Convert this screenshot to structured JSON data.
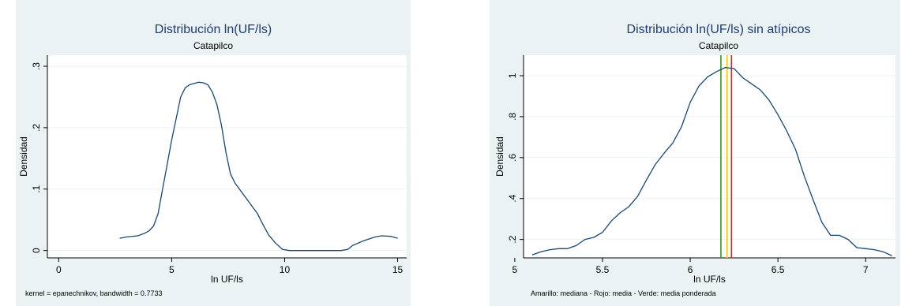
{
  "colors": {
    "frame_bg": "#eaf2f3",
    "plot_bg": "#ffffff",
    "title": "#1f3b6f",
    "curve": "#1a476f",
    "grid": "#eaf2f3",
    "median": "#f2c300",
    "mean": "#d62728",
    "weighted_mean": "#2e8b22"
  },
  "chart_data": [
    {
      "type": "line",
      "title": "Distribución ln(UF/ls)",
      "subtitle": "Catapilco",
      "xlabel": "ln UF/ls",
      "ylabel": "Densidad",
      "xlim": [
        -0.5,
        15.4
      ],
      "ylim": [
        -0.012,
        0.318
      ],
      "xticks": [
        0,
        5,
        10,
        15
      ],
      "xtick_labels": [
        "0",
        "5",
        "10",
        "15"
      ],
      "yticks": [
        0,
        0.1,
        0.2,
        0.3
      ],
      "ytick_labels": [
        "0",
        ".1",
        ".2",
        ".3"
      ],
      "grid": true,
      "note": "kernel = epanechnikov, bandwidth = 0.7733",
      "series": [
        {
          "x": [
            2.7,
            3.0,
            3.5,
            3.8,
            4.0,
            4.2,
            4.4,
            4.6,
            4.8,
            5.0,
            5.2,
            5.4,
            5.6,
            5.8,
            6.0,
            6.2,
            6.4,
            6.6,
            6.8,
            7.0,
            7.2,
            7.4,
            7.6,
            7.8,
            8.0,
            8.2,
            8.5,
            8.8,
            9.0,
            9.3,
            9.6,
            9.9,
            10.2,
            10.6,
            11.0,
            11.5,
            12.0,
            12.5,
            12.8,
            13.0,
            13.5,
            14.0,
            14.3,
            14.7,
            15.0
          ],
          "y": [
            0.02,
            0.022,
            0.024,
            0.028,
            0.032,
            0.04,
            0.06,
            0.1,
            0.14,
            0.18,
            0.215,
            0.25,
            0.265,
            0.27,
            0.272,
            0.274,
            0.273,
            0.27,
            0.258,
            0.238,
            0.205,
            0.16,
            0.125,
            0.11,
            0.1,
            0.09,
            0.075,
            0.06,
            0.045,
            0.025,
            0.012,
            0.002,
            0.0,
            0.0,
            0.0,
            0.0,
            0.0,
            0.0,
            0.002,
            0.008,
            0.016,
            0.022,
            0.024,
            0.023,
            0.02
          ]
        }
      ]
    },
    {
      "type": "line",
      "title": "Distribución ln(UF/ls) sin atípicos",
      "subtitle": "Catapilco",
      "xlabel": "ln UF/ls",
      "ylabel": "Densidad",
      "xlim": [
        5.05,
        7.17
      ],
      "ylim": [
        0.11,
        1.1
      ],
      "xticks": [
        5,
        5.5,
        6,
        6.5,
        7
      ],
      "xtick_labels": [
        "5",
        "5.5",
        "6",
        "6.5",
        "7"
      ],
      "yticks": [
        0.2,
        0.4,
        0.6,
        0.8,
        1.0
      ],
      "ytick_labels": [
        ".2",
        ".4",
        ".6",
        ".8",
        "1"
      ],
      "grid": true,
      "note": "Amarillo: mediana - Rojo: media - Verde: media ponderada",
      "reference_lines": [
        {
          "x": 6.175,
          "color_key": "weighted_mean"
        },
        {
          "x": 6.21,
          "color_key": "median"
        },
        {
          "x": 6.235,
          "color_key": "mean"
        }
      ],
      "series": [
        {
          "x": [
            5.1,
            5.15,
            5.2,
            5.25,
            5.3,
            5.35,
            5.4,
            5.45,
            5.5,
            5.55,
            5.6,
            5.65,
            5.7,
            5.75,
            5.8,
            5.85,
            5.9,
            5.95,
            6.0,
            6.05,
            6.1,
            6.15,
            6.2,
            6.25,
            6.3,
            6.35,
            6.4,
            6.45,
            6.5,
            6.55,
            6.6,
            6.65,
            6.7,
            6.75,
            6.8,
            6.85,
            6.9,
            6.95,
            7.0,
            7.05,
            7.1,
            7.15
          ],
          "y": [
            0.125,
            0.14,
            0.15,
            0.155,
            0.155,
            0.17,
            0.2,
            0.21,
            0.235,
            0.29,
            0.33,
            0.36,
            0.41,
            0.49,
            0.565,
            0.62,
            0.67,
            0.75,
            0.87,
            0.95,
            0.995,
            1.02,
            1.04,
            1.035,
            0.99,
            0.96,
            0.93,
            0.88,
            0.81,
            0.73,
            0.64,
            0.51,
            0.395,
            0.285,
            0.22,
            0.22,
            0.2,
            0.16,
            0.155,
            0.15,
            0.14,
            0.12
          ]
        }
      ]
    }
  ]
}
